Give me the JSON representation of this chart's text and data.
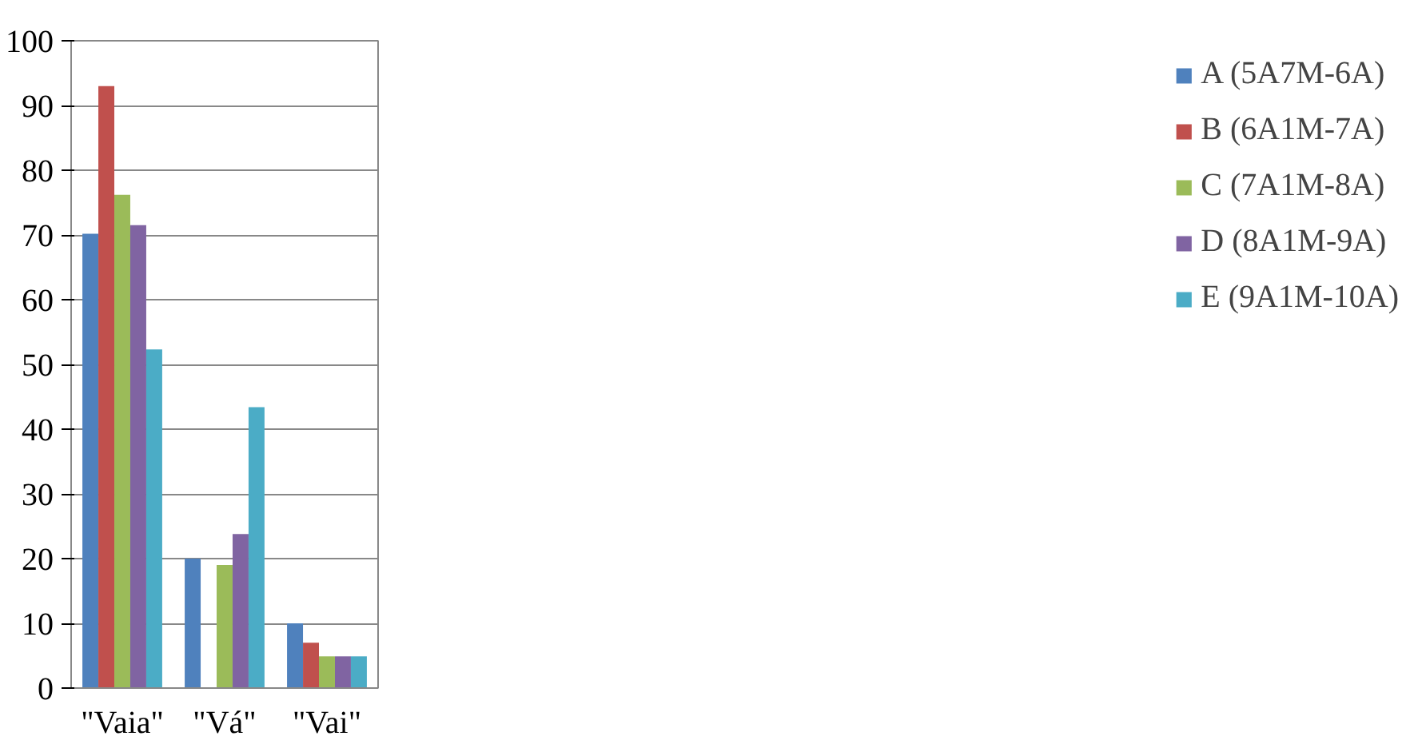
{
  "chart_data": {
    "type": "bar",
    "categories": [
      "\"Vaia\"",
      "\"Vá\"",
      "\"Vai\""
    ],
    "series": [
      {
        "name": "A (5A7M-6A)",
        "color": "#4f81bd",
        "values": [
          70.2,
          20,
          10
        ]
      },
      {
        "name": "B (6A1M-7A)",
        "color": "#c0504d",
        "values": [
          93,
          null,
          7
        ]
      },
      {
        "name": "C (7A1M-8A)",
        "color": "#9bbb59",
        "values": [
          76.2,
          19,
          4.9
        ]
      },
      {
        "name": "D (8A1M-9A)",
        "color": "#8064a2",
        "values": [
          71.5,
          23.8,
          4.9
        ]
      },
      {
        "name": "E (9A1M-10A)",
        "color": "#4bacc6",
        "values": [
          52.3,
          43.4,
          4.9
        ]
      }
    ],
    "ylim": [
      0,
      100
    ],
    "yticks": [
      0,
      10,
      20,
      30,
      40,
      50,
      60,
      70,
      80,
      90,
      100
    ],
    "grid": "y",
    "legend": "right"
  }
}
